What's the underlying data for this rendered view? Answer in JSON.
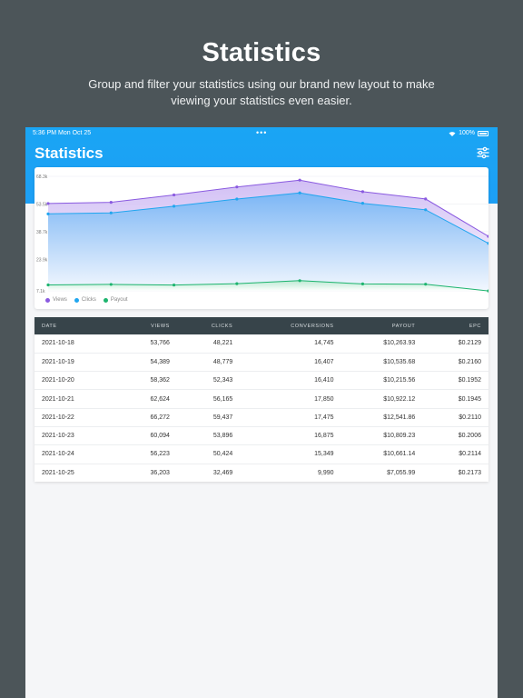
{
  "promo": {
    "title": "Statistics",
    "subtitle": "Group and filter your statistics using our brand new layout to make viewing your statistics even easier."
  },
  "status_bar": {
    "time": "5:36 PM   Mon Oct 25",
    "dots": "•••",
    "battery": "100%"
  },
  "header": {
    "title": "Statistics",
    "filter_icon": "sliders-icon"
  },
  "colors": {
    "header_blue": "#1da1f5",
    "views": "#8a5ae0",
    "clicks": "#20a6ef",
    "payout": "#1db46e",
    "table_header": "#37444a"
  },
  "chart_data": {
    "type": "area",
    "x": [
      "2021-10-18",
      "2021-10-19",
      "2021-10-20",
      "2021-10-21",
      "2021-10-22",
      "2021-10-23",
      "2021-10-24",
      "2021-10-25"
    ],
    "y_ticks": [
      "68.3k",
      "53.5k",
      "38.7k",
      "23.9k",
      "7.1k"
    ],
    "ylim": [
      7100,
      68300
    ],
    "series": [
      {
        "name": "Views",
        "values": [
          53766,
          54389,
          58362,
          62624,
          66272,
          60094,
          56223,
          36203
        ]
      },
      {
        "name": "Clicks",
        "values": [
          48221,
          48779,
          52343,
          56165,
          59437,
          53896,
          50424,
          32469
        ]
      },
      {
        "name": "Payout",
        "values": [
          10263.93,
          10535.68,
          10215.56,
          10922.12,
          12541.86,
          10809.23,
          10661.14,
          7055.99
        ]
      }
    ],
    "legend": [
      "Views",
      "Clicks",
      "Payout"
    ],
    "grid": true,
    "legend_position": "bottom-left"
  },
  "table": {
    "columns": [
      "DATE",
      "VIEWS",
      "CLICKS",
      "CONVERSIONS",
      "PAYOUT",
      "EPC"
    ],
    "rows": [
      [
        "2021-10-18",
        "53,766",
        "48,221",
        "14,745",
        "$10,263.93",
        "$0.2129"
      ],
      [
        "2021-10-19",
        "54,389",
        "48,779",
        "16,407",
        "$10,535.68",
        "$0.2160"
      ],
      [
        "2021-10-20",
        "58,362",
        "52,343",
        "16,410",
        "$10,215.56",
        "$0.1952"
      ],
      [
        "2021-10-21",
        "62,624",
        "56,165",
        "17,850",
        "$10,922.12",
        "$0.1945"
      ],
      [
        "2021-10-22",
        "66,272",
        "59,437",
        "17,475",
        "$12,541.86",
        "$0.2110"
      ],
      [
        "2021-10-23",
        "60,094",
        "53,896",
        "16,875",
        "$10,809.23",
        "$0.2006"
      ],
      [
        "2021-10-24",
        "56,223",
        "50,424",
        "15,349",
        "$10,661.14",
        "$0.2114"
      ],
      [
        "2021-10-25",
        "36,203",
        "32,469",
        "9,990",
        "$7,055.99",
        "$0.2173"
      ]
    ]
  }
}
